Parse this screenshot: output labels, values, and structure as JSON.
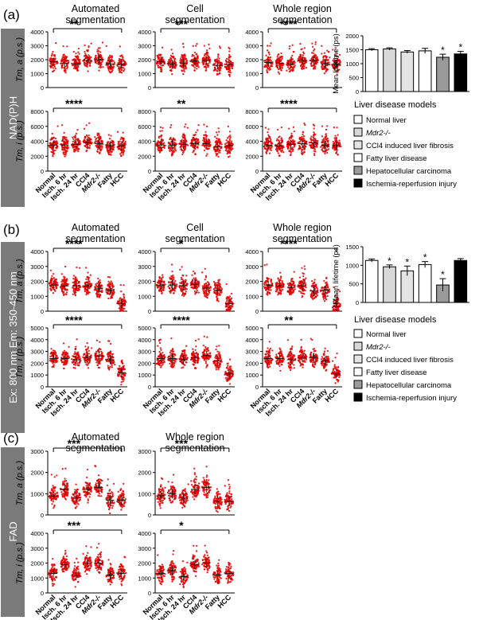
{
  "figure": {
    "categories": [
      "Normal",
      "Isch. 6 hr",
      "Isch. 24 hr",
      "CCl4",
      "Mdr2-/-",
      "Fatty",
      "HCC"
    ],
    "y_axis_labels": {
      "a": "Tm, a (p.s.)",
      "i": "Tm, i (p.s.)"
    },
    "bar_ylabel": "Mean lifetime (ps)"
  },
  "panels": [
    {
      "label": "(a)",
      "side": "NAD(P)H"
    },
    {
      "label": "(b)",
      "side": "Ex: 800 nm Em: 350-450 nm"
    },
    {
      "label": "(c)",
      "side": "FAD"
    }
  ],
  "legend": {
    "title": "Liver disease models",
    "items": [
      "Normal liver",
      "Mdr2-/-",
      "CCl4 induced liver fibrosis",
      "Fatty liver disease",
      "Hepatocellular carcinoma",
      "Ischemia-reperfusion injury"
    ],
    "fills": [
      "#ffffff",
      "#d8d8d8",
      "#e4e4e4",
      "#ffffff",
      "#9a9a9a",
      "#000000"
    ]
  },
  "colors": {
    "accent": "#e60000",
    "sidebar": "#7a7a7a",
    "text": "#111111"
  },
  "chart_data": [
    {
      "type": "scatter",
      "panel": "a",
      "title": "Automated segmentation",
      "ylabel": "Tm, a (p.s.)",
      "ylim": [
        0,
        4000
      ],
      "yticks": [
        0,
        1000,
        2000,
        3000,
        4000
      ],
      "categories": [
        "Normal",
        "Isch. 6 hr",
        "Isch. 24 hr",
        "CCl4",
        "Mdr2-/-",
        "Fatty",
        "HCC"
      ],
      "values": [
        1850,
        1750,
        1700,
        1950,
        2000,
        1700,
        1650
      ],
      "significance": "**"
    },
    {
      "type": "scatter",
      "panel": "a",
      "title": "Cell segmentation",
      "ylabel": "Tm, a (p.s.)",
      "ylim": [
        0,
        4000
      ],
      "yticks": [
        0,
        1000,
        2000,
        3000,
        4000
      ],
      "categories": [
        "Normal",
        "Isch. 6 hr",
        "Isch. 24 hr",
        "CCl4",
        "Mdr2-/-",
        "Fatty",
        "HCC"
      ],
      "values": [
        1850,
        1700,
        1750,
        1900,
        1950,
        1600,
        1650
      ],
      "significance": "***"
    },
    {
      "type": "scatter",
      "panel": "a",
      "title": "Whole region segmentation",
      "ylabel": "Tm, a (p.s.)",
      "ylim": [
        0,
        4000
      ],
      "yticks": [
        0,
        1000,
        2000,
        3000,
        4000
      ],
      "categories": [
        "Normal",
        "Isch. 6 hr",
        "Isch. 24 hr",
        "CCl4",
        "Mdr2-/-",
        "Fatty",
        "HCC"
      ],
      "values": [
        1800,
        1750,
        1700,
        1950,
        1950,
        1700,
        1700
      ],
      "significance": "****"
    },
    {
      "type": "bar",
      "panel": "a",
      "ylabel": "Mean lifetime (ps)",
      "ylim": [
        0,
        2000
      ],
      "yticks": [
        0,
        500,
        1000,
        1500,
        2000
      ],
      "categories": [
        "Normal liver",
        "Mdr2-/-",
        "CCl4 induced liver fibrosis",
        "Fatty liver disease",
        "Hepatocellular carcinoma",
        "Ischemia-reperfusion injury"
      ],
      "values": [
        1500,
        1530,
        1420,
        1460,
        1230,
        1350
      ],
      "errors": [
        40,
        40,
        50,
        90,
        110,
        90
      ],
      "starred": [
        false,
        false,
        false,
        false,
        true,
        true
      ]
    },
    {
      "type": "scatter",
      "panel": "a",
      "ylabel": "Tm, i (p.s.)",
      "ylim": [
        0,
        8000
      ],
      "yticks": [
        0,
        2000,
        4000,
        6000,
        8000
      ],
      "categories": [
        "Normal",
        "Isch. 6 hr",
        "Isch. 24 hr",
        "CCl4",
        "Mdr2-/-",
        "Fatty",
        "HCC"
      ],
      "values": [
        3500,
        3500,
        3600,
        3800,
        3700,
        3400,
        3400
      ],
      "significance": "****"
    },
    {
      "type": "scatter",
      "panel": "a",
      "ylabel": "Tm, i (p.s.)",
      "ylim": [
        0,
        8000
      ],
      "yticks": [
        0,
        2000,
        4000,
        6000,
        8000
      ],
      "categories": [
        "Normal",
        "Isch. 6 hr",
        "Isch. 24 hr",
        "CCl4",
        "Mdr2-/-",
        "Fatty",
        "HCC"
      ],
      "values": [
        3500,
        3500,
        3600,
        3700,
        3700,
        3300,
        3400
      ],
      "significance": "**"
    },
    {
      "type": "scatter",
      "panel": "a",
      "ylabel": "Tm, i (p.s.)",
      "ylim": [
        0,
        8000
      ],
      "yticks": [
        0,
        2000,
        4000,
        6000,
        8000
      ],
      "categories": [
        "Normal",
        "Isch. 6 hr",
        "Isch. 24 hr",
        "CCl4",
        "Mdr2-/-",
        "Fatty",
        "HCC"
      ],
      "values": [
        3500,
        3400,
        3600,
        3700,
        3800,
        3400,
        3400
      ],
      "significance": "****"
    },
    {
      "type": "scatter",
      "panel": "b",
      "title": "Automated segmentation",
      "ylabel": "Tm, a (p.s.)",
      "ylim": [
        0,
        4000
      ],
      "yticks": [
        0,
        1000,
        2000,
        3000,
        4000
      ],
      "categories": [
        "Normal",
        "Isch. 6 hr",
        "Isch. 24 hr",
        "CCl4",
        "Mdr2-/-",
        "Fatty",
        "HCC"
      ],
      "values": [
        1750,
        1700,
        1700,
        1700,
        1500,
        1400,
        500
      ],
      "significance": "****"
    },
    {
      "type": "scatter",
      "panel": "b",
      "title": "Cell segmentation",
      "ylabel": "Tm, a (p.s.)",
      "ylim": [
        0,
        4000
      ],
      "yticks": [
        0,
        1000,
        2000,
        3000,
        4000
      ],
      "categories": [
        "Normal",
        "Isch. 6 hr",
        "Isch. 24 hr",
        "CCl4",
        "Mdr2-/-",
        "Fatty",
        "HCC"
      ],
      "values": [
        1750,
        1750,
        1700,
        1800,
        1550,
        1400,
        500
      ],
      "significance": "*"
    },
    {
      "type": "scatter",
      "panel": "b",
      "title": "Whole region segmentation",
      "ylabel": "Tm, a (p.s.)",
      "ylim": [
        0,
        4000
      ],
      "yticks": [
        0,
        1000,
        2000,
        3000,
        4000
      ],
      "categories": [
        "Normal",
        "Isch. 6 hr",
        "Isch. 24 hr",
        "CCl4",
        "Mdr2-/-",
        "Fatty",
        "HCC"
      ],
      "values": [
        1750,
        1700,
        1600,
        1700,
        1350,
        1400,
        300
      ],
      "significance": "****"
    },
    {
      "type": "bar",
      "panel": "b",
      "ylabel": "Mean lifetime (ps)",
      "ylim": [
        0,
        1500
      ],
      "yticks": [
        0,
        500,
        1000,
        1500
      ],
      "categories": [
        "Normal liver",
        "Mdr2-/-",
        "CCl4 induced liver fibrosis",
        "Fatty liver disease",
        "Hepatocellular carcinoma",
        "Ischemia-reperfusion injury"
      ],
      "values": [
        1130,
        960,
        850,
        1020,
        470,
        1130
      ],
      "errors": [
        40,
        50,
        130,
        80,
        170,
        50
      ],
      "starred": [
        false,
        true,
        true,
        true,
        true,
        false
      ]
    },
    {
      "type": "scatter",
      "panel": "b",
      "ylabel": "Tm, i (p.s.)",
      "ylim": [
        0,
        5000
      ],
      "yticks": [
        0,
        1000,
        2000,
        3000,
        4000,
        5000
      ],
      "categories": [
        "Normal",
        "Isch. 6 hr",
        "Isch. 24 hr",
        "CCl4",
        "Mdr2-/-",
        "Fatty",
        "HCC"
      ],
      "values": [
        2400,
        2400,
        2300,
        2500,
        2600,
        2300,
        1200
      ],
      "significance": "****"
    },
    {
      "type": "scatter",
      "panel": "b",
      "ylabel": "Tm, i (p.s.)",
      "ylim": [
        0,
        5000
      ],
      "yticks": [
        0,
        1000,
        2000,
        3000,
        4000,
        5000
      ],
      "categories": [
        "Normal",
        "Isch. 6 hr",
        "Isch. 24 hr",
        "CCl4",
        "Mdr2-/-",
        "Fatty",
        "HCC"
      ],
      "values": [
        2400,
        2400,
        2300,
        2450,
        2650,
        2200,
        1100
      ],
      "significance": "****"
    },
    {
      "type": "scatter",
      "panel": "b",
      "ylabel": "Tm, i (p.s.)",
      "ylim": [
        0,
        5000
      ],
      "yticks": [
        0,
        1000,
        2000,
        3000,
        4000,
        5000
      ],
      "categories": [
        "Normal",
        "Isch. 6 hr",
        "Isch. 24 hr",
        "CCl4",
        "Mdr2-/-",
        "Fatty",
        "HCC"
      ],
      "values": [
        2400,
        2400,
        2300,
        2450,
        2500,
        2200,
        1100
      ],
      "significance": "**"
    },
    {
      "type": "scatter",
      "panel": "c",
      "title": "Automated segmentation",
      "ylabel": "Tm, a (p.s.)",
      "ylim": [
        0,
        3000
      ],
      "yticks": [
        0,
        1000,
        2000,
        3000
      ],
      "categories": [
        "Normal",
        "Isch. 6 hr",
        "Isch. 24 hr",
        "CCl4",
        "Mdr2-/-",
        "Fatty",
        "HCC"
      ],
      "values": [
        900,
        1200,
        800,
        1200,
        1300,
        700,
        700
      ],
      "significance": "***"
    },
    {
      "type": "scatter",
      "panel": "c",
      "title": "Whole region segmentation",
      "ylabel": "Tm, a (p.s.)",
      "ylim": [
        0,
        3000
      ],
      "yticks": [
        0,
        1000,
        2000,
        3000
      ],
      "categories": [
        "Normal",
        "Isch. 6 hr",
        "Isch. 24 hr",
        "CCl4",
        "Mdr2-/-",
        "Fatty",
        "HCC"
      ],
      "values": [
        900,
        1000,
        800,
        1200,
        1300,
        650,
        650
      ],
      "significance": "***"
    },
    {
      "type": "scatter",
      "panel": "c",
      "ylabel": "Tm, i (p.s.)",
      "ylim": [
        0,
        4000
      ],
      "yticks": [
        0,
        1000,
        2000,
        3000,
        4000
      ],
      "categories": [
        "Normal",
        "Isch. 6 hr",
        "Isch. 24 hr",
        "CCl4",
        "Mdr2-/-",
        "Fatty",
        "HCC"
      ],
      "values": [
        1300,
        1900,
        1150,
        2000,
        2000,
        1200,
        1300
      ],
      "significance": "***"
    },
    {
      "type": "scatter",
      "panel": "c",
      "ylabel": "Tm, i (p.s.)",
      "ylim": [
        0,
        4000
      ],
      "yticks": [
        0,
        1000,
        2000,
        3000,
        4000
      ],
      "categories": [
        "Normal",
        "Isch. 6 hr",
        "Isch. 24 hr",
        "CCl4",
        "Mdr2-/-",
        "Fatty",
        "HCC"
      ],
      "values": [
        1300,
        1500,
        1100,
        1900,
        2000,
        1200,
        1300
      ],
      "significance": "*"
    }
  ]
}
